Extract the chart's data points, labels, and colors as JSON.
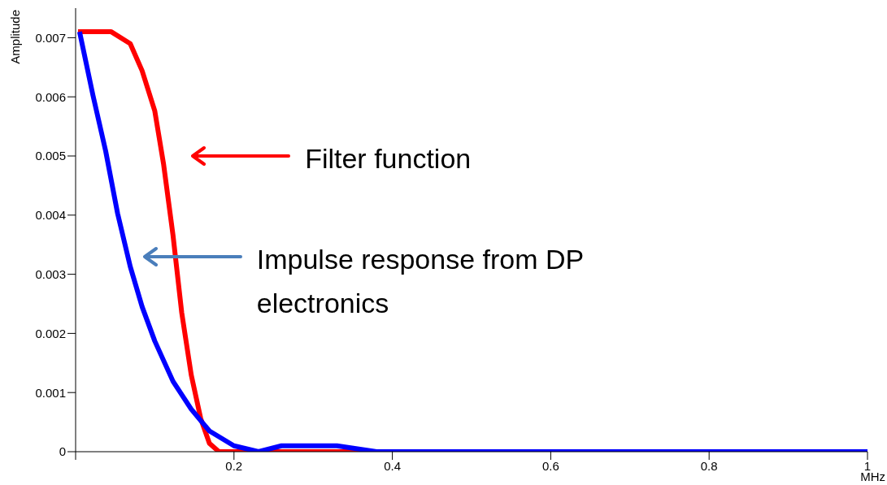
{
  "chart_data": {
    "type": "line",
    "xlabel": "MHz",
    "ylabel": "Amplitude",
    "xlim": [
      0,
      1
    ],
    "xticks": [
      {
        "value": 0,
        "label": null
      },
      0.2,
      0.4,
      0.6,
      0.8,
      1
    ],
    "ylim": [
      0,
      0.0075
    ],
    "yticks": [
      0,
      0.001,
      0.002,
      0.003,
      0.004,
      0.005,
      0.006,
      0.007
    ],
    "annotations": [
      "Filter function",
      "Impulse response from DP electronics"
    ],
    "series": [
      {
        "color": "#ff0000",
        "x": [
          0.003,
          0.045,
          0.069,
          0.084,
          0.1,
          0.111,
          0.123,
          0.134,
          0.146,
          0.158,
          0.169,
          0.181,
          0.192,
          0.2,
          1
        ],
        "values": [
          0.0071,
          0.0071,
          0.0069,
          0.00644,
          0.00576,
          0.00487,
          0.00366,
          0.00235,
          0.0013,
          0.00056,
          0.00014,
          0,
          0,
          0,
          0
        ]
      },
      {
        "color": "#0000ff",
        "x": [
          0.005,
          0.022,
          0.038,
          0.053,
          0.069,
          0.084,
          0.1,
          0.123,
          0.146,
          0.169,
          0.2,
          0.231,
          0.26,
          0.29,
          0.33,
          0.38,
          0.45,
          0.5,
          1
        ],
        "values": [
          0.0071,
          0.00602,
          0.00508,
          0.00403,
          0.00313,
          0.00245,
          0.00187,
          0.00119,
          0.00072,
          0.00035,
          0.0001,
          0,
          0.0001,
          0.0001,
          0.0001,
          0,
          0,
          0,
          0
        ]
      }
    ]
  }
}
